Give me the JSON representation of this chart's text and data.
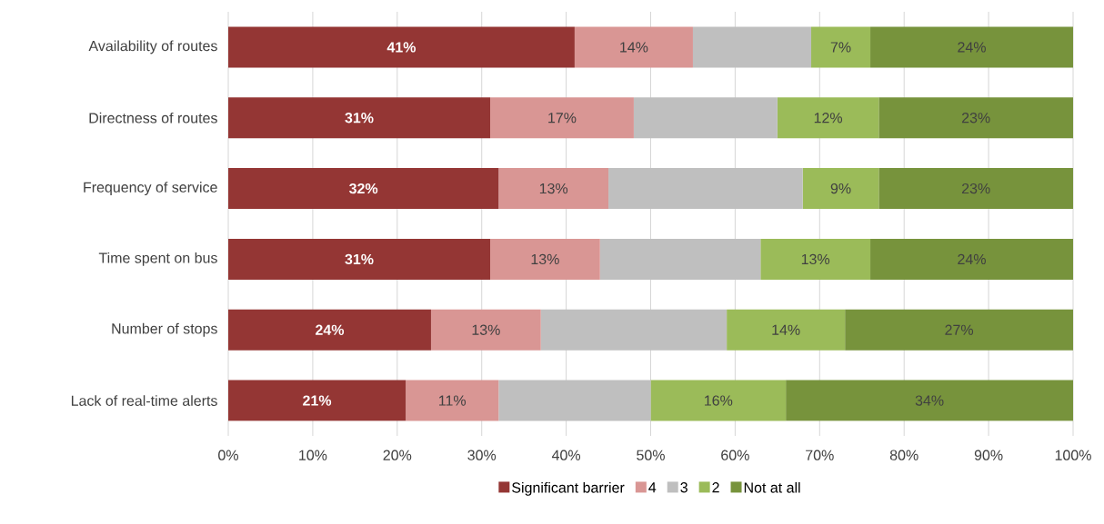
{
  "chart_data": {
    "type": "bar",
    "orientation": "horizontal",
    "stacked": true,
    "categories": [
      "Availability of routes",
      "Directness of routes",
      "Frequency of service",
      "Time spent on bus",
      "Number of stops",
      "Lack of real-time alerts"
    ],
    "series": [
      {
        "name": "Significant barrier",
        "color": "#943634",
        "values": [
          41,
          31,
          32,
          31,
          24,
          21
        ],
        "value_labels": [
          "41%",
          "31%",
          "32%",
          "31%",
          "24%",
          "21%"
        ]
      },
      {
        "name": "4",
        "color": "#d99694",
        "values": [
          14,
          17,
          13,
          13,
          13,
          11
        ],
        "value_labels": [
          "14%",
          "17%",
          "13%",
          "13%",
          "13%",
          "11%"
        ]
      },
      {
        "name": "3",
        "color": "#bfbfbf",
        "values": [
          14,
          17,
          23,
          19,
          22,
          18
        ]
      },
      {
        "name": "2",
        "color": "#9bbb59",
        "values": [
          7,
          12,
          9,
          13,
          14,
          16
        ],
        "value_labels": [
          "7%",
          "12%",
          "9%",
          "13%",
          "14%",
          "16%"
        ]
      },
      {
        "name": "Not at all",
        "color": "#77933c",
        "values": [
          24,
          23,
          23,
          24,
          27,
          34
        ],
        "value_labels": [
          "24%",
          "23%",
          "23%",
          "24%",
          "27%",
          "34%"
        ]
      }
    ],
    "xlim": [
      0,
      100
    ],
    "xticks": [
      {
        "value": 0,
        "label": "0%"
      },
      {
        "value": 10,
        "label": "10%"
      },
      {
        "value": 20,
        "label": "20%"
      },
      {
        "value": 30,
        "label": "30%"
      },
      {
        "value": 40,
        "label": "40%"
      },
      {
        "value": 50,
        "label": "50%"
      },
      {
        "value": 60,
        "label": "60%"
      },
      {
        "value": 70,
        "label": "70%"
      },
      {
        "value": 80,
        "label": "80%"
      },
      {
        "value": 90,
        "label": "90%"
      },
      {
        "value": 100,
        "label": "100%"
      }
    ],
    "grid": "x",
    "legend": "bottom"
  }
}
